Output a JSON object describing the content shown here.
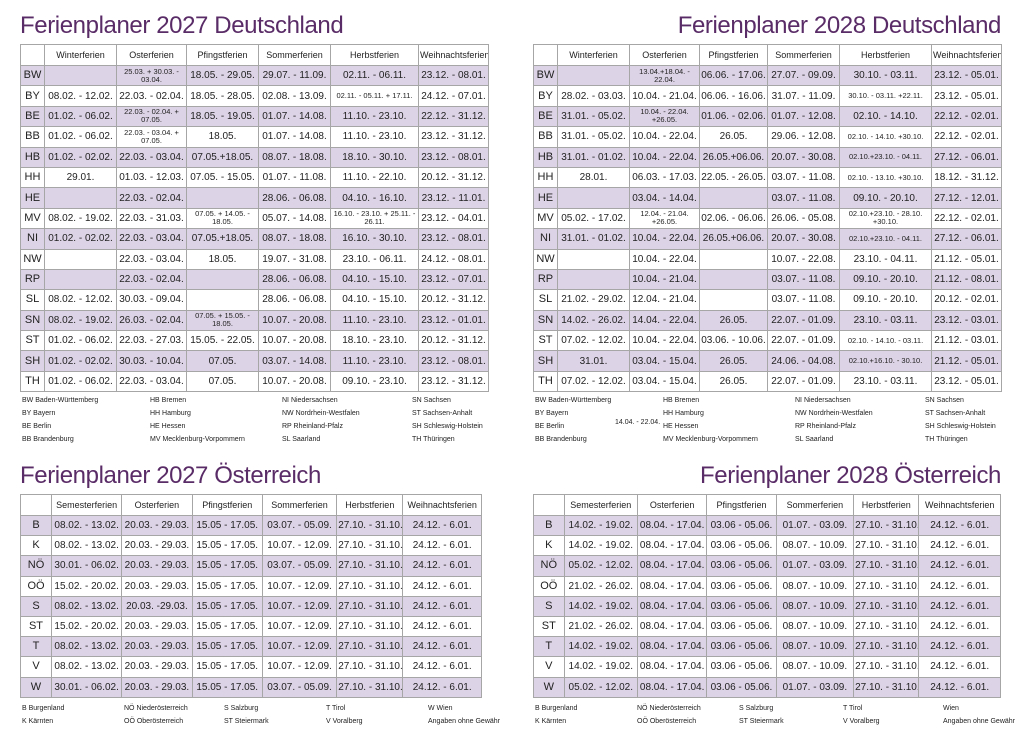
{
  "de2027": {
    "title": "Ferienplaner 2027 Deutschland",
    "headers": [
      "",
      "Winterferien",
      "Osterferien",
      "Pfingstferien",
      "Sommerferien",
      "Herbstferien",
      "Weihnachtsferien"
    ],
    "rows": [
      [
        "BW",
        "",
        "25.03. + 30.03. - 03.04.",
        "18.05. - 29.05.",
        "29.07. - 11.09.",
        "02.11. - 06.11.",
        "23.12. - 08.01."
      ],
      [
        "BY",
        "08.02. - 12.02.",
        "22.03. - 02.04.",
        "18.05. - 28.05.",
        "02.08. - 13.09.",
        "02.11. - 05.11. + 17.11.",
        "24.12. - 07.01."
      ],
      [
        "BE",
        "01.02. - 06.02.",
        "22.03. - 02.04. + 07.05.",
        "18.05. - 19.05.",
        "01.07. - 14.08.",
        "11.10. - 23.10.",
        "22.12. - 31.12."
      ],
      [
        "BB",
        "01.02. - 06.02.",
        "22.03. - 03.04. + 07.05.",
        "18.05.",
        "01.07. - 14.08.",
        "11.10. - 23.10.",
        "23.12. - 31.12."
      ],
      [
        "HB",
        "01.02. - 02.02.",
        "22.03. - 03.04.",
        "07.05.+18.05.",
        "08.07. - 18.08.",
        "18.10. - 30.10.",
        "23.12. - 08.01."
      ],
      [
        "HH",
        "29.01.",
        "01.03. - 12.03.",
        "07.05. - 15.05.",
        "01.07. - 11.08.",
        "11.10. - 22.10.",
        "20.12. - 31.12."
      ],
      [
        "HE",
        "",
        "22.03. - 02.04.",
        "",
        "28.06. - 06.08.",
        "04.10. - 16.10.",
        "23.12. - 11.01."
      ],
      [
        "MV",
        "08.02. - 19.02.",
        "22.03. - 31.03.",
        "07.05. + 14.05. - 18.05.",
        "05.07. - 14.08.",
        "16.10. - 23.10. + 25.11. - 26.11.",
        "23.12. - 04.01."
      ],
      [
        "NI",
        "01.02. - 02.02.",
        "22.03. - 03.04.",
        "07.05.+18.05.",
        "08.07. - 18.08.",
        "16.10. - 30.10.",
        "23.12. - 08.01."
      ],
      [
        "NW",
        "",
        "22.03. - 03.04.",
        "18.05.",
        "19.07. - 31.08.",
        "23.10. - 06.11.",
        "24.12. - 08.01."
      ],
      [
        "RP",
        "",
        "22.03. - 02.04.",
        "",
        "28.06. - 06.08.",
        "04.10. - 15.10.",
        "23.12. - 07.01."
      ],
      [
        "SL",
        "08.02. - 12.02.",
        "30.03. - 09.04.",
        "",
        "28.06. - 06.08.",
        "04.10. - 15.10.",
        "20.12. - 31.12."
      ],
      [
        "SN",
        "08.02. - 19.02.",
        "26.03. - 02.04.",
        "07.05. + 15.05. - 18.05.",
        "10.07. - 20.08.",
        "11.10. - 23.10.",
        "23.12. - 01.01."
      ],
      [
        "ST",
        "01.02. - 06.02.",
        "22.03. - 27.03.",
        "15.05. - 22.05.",
        "10.07. - 20.08.",
        "18.10. - 23.10.",
        "20.12. - 31.12."
      ],
      [
        "SH",
        "01.02. - 02.02.",
        "30.03. - 10.04.",
        "07.05.",
        "03.07. - 14.08.",
        "11.10. - 23.10.",
        "23.12. - 08.01."
      ],
      [
        "TH",
        "01.02. - 06.02.",
        "22.03. - 03.04.",
        "07.05.",
        "10.07. - 20.08.",
        "09.10. - 23.10.",
        "23.12. - 31.12."
      ]
    ],
    "legend": [
      "BW Baden-Württemberg",
      "HB Bremen",
      "NI   Niedersachsen",
      "SN Sachsen",
      "BY  Bayern",
      "HH Hamburg",
      "NW Nordrhein-Westfalen",
      "ST Sachsen-Anhalt",
      "BE  Berlin",
      "HE Hessen",
      "RP  Rheinland-Pfalz",
      "SH Schleswig-Holstein",
      "BB Brandenburg",
      "MV Mecklenburg-Vorpommern",
      "SL   Saarland",
      "TH Thüringen"
    ]
  },
  "de2028": {
    "title": "Ferienplaner 2028 Deutschland",
    "headers": [
      "",
      "Winterferien",
      "Osterferien",
      "Pfingstferien",
      "Sommerferien",
      "Herbstferien",
      "Weihnachtsferien"
    ],
    "rows": [
      [
        "BW",
        "",
        "13.04.+18.04. - 22.04.",
        "06.06. - 17.06.",
        "27.07. - 09.09.",
        "30.10. - 03.11.",
        "23.12. - 05.01."
      ],
      [
        "BY",
        "28.02. - 03.03.",
        "10.04. - 21.04.",
        "06.06. - 16.06.",
        "31.07. - 11.09.",
        "30.10. - 03.11. +22.11.",
        "23.12. - 05.01."
      ],
      [
        "BE",
        "31.01. - 05.02.",
        "10.04. - 22.04. +26.05.",
        "01.06. - 02.06.",
        "01.07. - 12.08.",
        "02.10. - 14.10.",
        "22.12. - 02.01."
      ],
      [
        "BB",
        "31.01. - 05.02.",
        "10.04. - 22.04.",
        "26.05.",
        "29.06. - 12.08.",
        "02.10. - 14.10. +30.10.",
        "22.12. - 02.01."
      ],
      [
        "HB",
        "31.01. - 01.02.",
        "10.04. - 22.04.",
        "26.05.+06.06.",
        "20.07. - 30.08.",
        "02.10.+23.10. - 04.11.",
        "27.12. - 06.01."
      ],
      [
        "HH",
        "28.01.",
        "06.03. - 17.03.",
        "22.05. - 26.05.",
        "03.07. - 11.08.",
        "02.10. - 13.10. +30.10.",
        "18.12. - 31.12."
      ],
      [
        "HE",
        "",
        "03.04. - 14.04.",
        "",
        "03.07. - 11.08.",
        "09.10. - 20.10.",
        "27.12. - 12.01."
      ],
      [
        "MV",
        "05.02. - 17.02.",
        "12.04. - 21.04. +26.05.",
        "02.06. - 06.06.",
        "26.06. - 05.08.",
        "02.10.+23.10. - 28.10. +30.10.",
        "22.12. - 02.01."
      ],
      [
        "NI",
        "31.01. - 01.02.",
        "10.04. - 22.04.",
        "26.05.+06.06.",
        "20.07. - 30.08.",
        "02.10.+23.10. - 04.11.",
        "27.12. - 06.01."
      ],
      [
        "NW",
        "",
        "10.04. - 22.04.",
        "",
        "10.07. - 22.08.",
        "23.10. - 04.11.",
        "21.12. - 05.01."
      ],
      [
        "RP",
        "",
        "10.04. - 21.04.",
        "",
        "03.07. - 11.08.",
        "09.10. - 20.10.",
        "21.12. - 08.01."
      ],
      [
        "SL",
        "21.02. - 29.02.",
        "12.04. - 21.04.",
        "",
        "03.07. - 11.08.",
        "09.10. - 20.10.",
        "20.12. - 02.01."
      ],
      [
        "SN",
        "14.02. - 26.02.",
        "14.04. - 22.04.",
        "26.05.",
        "22.07. - 01.09.",
        "23.10. - 03.11.",
        "23.12. - 03.01."
      ],
      [
        "ST",
        "07.02. - 12.02.",
        "10.04. - 22.04.",
        "03.06. - 10.06.",
        "22.07. - 01.09.",
        "02.10. - 14.10. - 03.11.",
        "21.12. - 03.01."
      ],
      [
        "SH",
        "31.01.",
        "03.04. - 15.04.",
        "26.05.",
        "24.06. - 04.08.",
        "02.10.+16.10. - 30.10.",
        "21.12. - 05.01."
      ],
      [
        "TH",
        "07.02. - 12.02.",
        "03.04. - 15.04.",
        "26.05.",
        "22.07. - 01.09.",
        "23.10. - 03.11.",
        "23.12. - 05.01."
      ]
    ],
    "legend": [
      "BW Baden-Württemberg",
      "HB Bremen",
      "NI   Niedersachsen",
      "SN Sachsen",
      "BY  Bayern",
      "HH Hamburg",
      "NW Nordrhein-Westfalen",
      "ST Sachsen-Anhalt",
      "BE  Berlin",
      "HE Hessen",
      "RP  Rheinland-Pfalz",
      "SH Schleswig-Holstein",
      "BB Brandenburg",
      "MV Mecklenburg-Vorpommern",
      "SL   Saarland",
      "TH Thüringen"
    ],
    "stray_text": "14.04. - 22.04."
  },
  "at2027": {
    "title": "Ferienplaner 2027 Österreich",
    "headers": [
      "",
      "Semesterferien",
      "Osterferien",
      "Pfingstferien",
      "Sommerferien",
      "Herbstferien",
      "Weihnachtsferien"
    ],
    "rows": [
      [
        "B",
        "08.02. - 13.02.",
        "20.03. - 29.03.",
        "15.05 - 17.05.",
        "03.07. - 05.09.",
        "27.10. - 31.10.",
        "24.12. - 6.01."
      ],
      [
        "K",
        "08.02. - 13.02.",
        "20.03. - 29.03.",
        "15.05 - 17.05.",
        "10.07. - 12.09.",
        "27.10. - 31.10.",
        "24.12. - 6.01."
      ],
      [
        "NÖ",
        "30.01. - 06.02.",
        "20.03. - 29.03.",
        "15.05 - 17.05.",
        "03.07. - 05.09.",
        "27.10. - 31.10.",
        "24.12. - 6.01."
      ],
      [
        "OÖ",
        "15.02. - 20.02.",
        "20.03. - 29.03.",
        "15.05 - 17.05.",
        "10.07. - 12.09.",
        "27.10. - 31.10.",
        "24.12. - 6.01."
      ],
      [
        "S",
        "08.02. - 13.02.",
        "20.03. -29.03.",
        "15.05 - 17.05.",
        "10.07. - 12.09.",
        "27.10. - 31.10.",
        "24.12. - 6.01."
      ],
      [
        "ST",
        "15.02. - 20.02.",
        "20.03. - 29.03.",
        "15.05 - 17.05.",
        "10.07. - 12.09.",
        "27.10. - 31.10.",
        "24.12. - 6.01."
      ],
      [
        "T",
        "08.02. - 13.02.",
        "20.03. - 29.03.",
        "15.05 - 17.05.",
        "10.07. - 12.09.",
        "27.10. - 31.10.",
        "24.12. - 6.01."
      ],
      [
        "V",
        "08.02. - 13.02.",
        "20.03. - 29.03.",
        "15.05 - 17.05.",
        "10.07. - 12.09.",
        "27.10. - 31.10.",
        "24.12. - 6.01."
      ],
      [
        "W",
        "30.01. - 06.02.",
        "20.03. - 29.03.",
        "15.05 - 17.05.",
        "03.07. - 05.09.",
        "27.10. - 31.10.",
        "24.12. - 6.01."
      ]
    ],
    "legend": [
      "B Burgenland",
      "NÖ Niederösterreich",
      "S Salzburg",
      "T Tirol",
      "W Wien",
      "K Kärnten",
      "OÖ Oberösterreich",
      "ST Steiermark",
      "V Voralberg",
      "Angaben ohne Gewähr"
    ]
  },
  "at2028": {
    "title": "Ferienplaner 2028 Österreich",
    "headers": [
      "",
      "Semesterferien",
      "Osterferien",
      "Pfingstferien",
      "Sommerferien",
      "Herbstferien",
      "Weihnachtsferien"
    ],
    "rows": [
      [
        "B",
        "14.02. - 19.02.",
        "08.04. - 17.04.",
        "03.06 - 05.06.",
        "01.07. - 03.09.",
        "27.10. - 31.10.",
        "24.12. - 6.01."
      ],
      [
        "K",
        "14.02. - 19.02.",
        "08.04. - 17.04.",
        "03.06 - 05.06.",
        "08.07. - 10.09.",
        "27.10. - 31.10.",
        "24.12. - 6.01."
      ],
      [
        "NÖ",
        "05.02. - 12.02.",
        "08.04. - 17.04.",
        "03.06 - 05.06.",
        "01.07. - 03.09.",
        "27.10. - 31.10.",
        "24.12. - 6.01."
      ],
      [
        "OÖ",
        "21.02. - 26.02.",
        "08.04. - 17.04.",
        "03.06 - 05.06.",
        "08.07. - 10.09.",
        "27.10. - 31.10.",
        "24.12. - 6.01."
      ],
      [
        "S",
        "14.02. - 19.02.",
        "08.04. - 17.04.",
        "03.06 - 05.06.",
        "08.07. - 10.09.",
        "27.10. - 31.10.",
        "24.12. - 6.01."
      ],
      [
        "ST",
        "21.02. - 26.02.",
        "08.04. - 17.04.",
        "03.06 - 05.06.",
        "08.07. - 10.09.",
        "27.10. - 31.10.",
        "24.12. - 6.01."
      ],
      [
        "T",
        "14.02. - 19.02.",
        "08.04. - 17.04.",
        "03.06 - 05.06.",
        "08.07. - 10.09.",
        "27.10. - 31.10.",
        "24.12. - 6.01."
      ],
      [
        "V",
        "14.02. - 19.02.",
        "08.04. - 17.04.",
        "03.06 - 05.06.",
        "08.07. - 10.09.",
        "27.10. - 31.10.",
        "24.12. - 6.01."
      ],
      [
        "W",
        "05.02. - 12.02.",
        "08.04. - 17.04.",
        "03.06 - 05.06.",
        "01.07. - 03.09.",
        "27.10. - 31.10.",
        "24.12. - 6.01."
      ]
    ],
    "legend": [
      "B Burgenland",
      "NÖ Niederösterreich",
      "S Salzburg",
      "T Tirol",
      "Wien",
      "K Kärnten",
      "OÖ Oberösterreich",
      "ST Steiermark",
      "V Voralberg",
      "Angaben ohne Gewähr"
    ]
  },
  "colors": {
    "title": "#5a2c67",
    "row_shade": "#ddd3e6",
    "grid": "#a6a6a6"
  }
}
